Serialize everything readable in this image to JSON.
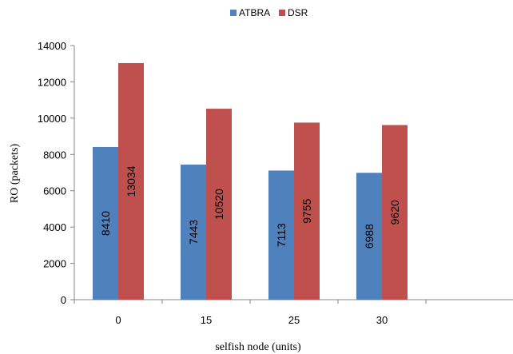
{
  "chart_data": {
    "type": "bar",
    "categories": [
      "0",
      "15",
      "25",
      "30"
    ],
    "series": [
      {
        "name": "ATBRA",
        "color": "#4f81bd",
        "values": [
          8410,
          7443,
          7113,
          6988
        ]
      },
      {
        "name": "DSR",
        "color": "#c0504d",
        "values": [
          13034,
          10520,
          9755,
          9620
        ]
      }
    ],
    "xlabel": "selfish node (units)",
    "ylabel": "RO (packets)",
    "ylim": [
      0,
      14000
    ],
    "yticks": [
      0,
      2000,
      4000,
      6000,
      8000,
      10000,
      12000,
      14000
    ],
    "grid": false,
    "legend": "top-center",
    "data_labels": "vertical-inside-bars"
  }
}
